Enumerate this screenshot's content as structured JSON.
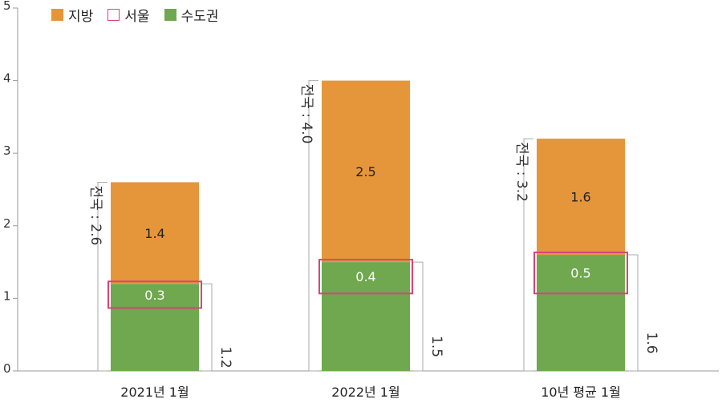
{
  "legend": {
    "items": [
      {
        "label": "지방",
        "color": "#e5963b",
        "style": "fill"
      },
      {
        "label": "서울",
        "color": "#d6457a",
        "style": "outline"
      },
      {
        "label": "수도권",
        "color": "#6fa84e",
        "style": "fill"
      }
    ]
  },
  "chart_data": {
    "type": "bar",
    "stacked": true,
    "categories": [
      "2021년 1월",
      "2022년 1월",
      "10년 평균 1월"
    ],
    "series": [
      {
        "name": "수도권",
        "values": [
          1.2,
          1.5,
          1.6
        ],
        "color": "#6fa84e"
      },
      {
        "name": "지방",
        "values": [
          1.4,
          2.5,
          1.6
        ],
        "color": "#e5963b"
      }
    ],
    "seoul": {
      "name": "서울",
      "values": [
        0.3,
        0.4,
        0.5
      ],
      "color": "#d6457a"
    },
    "totals": [
      2.6,
      4.0,
      3.2
    ],
    "total_labels": [
      "전국 : 2.6",
      "전국 : 4.0",
      "전국 : 3.2"
    ],
    "capital_labels": [
      "1.2",
      "1.5",
      "1.6"
    ],
    "segment_labels": {
      "regional": [
        "1.4",
        "2.5",
        "1.6"
      ],
      "seoul": [
        "0.3",
        "0.4",
        "0.5"
      ]
    },
    "yticks": [
      "0",
      "1",
      "2",
      "3",
      "4",
      "5"
    ],
    "ylim": [
      0,
      5
    ],
    "grid": false,
    "legend_position": "top-left",
    "title": "",
    "xlabel": "",
    "ylabel": ""
  }
}
